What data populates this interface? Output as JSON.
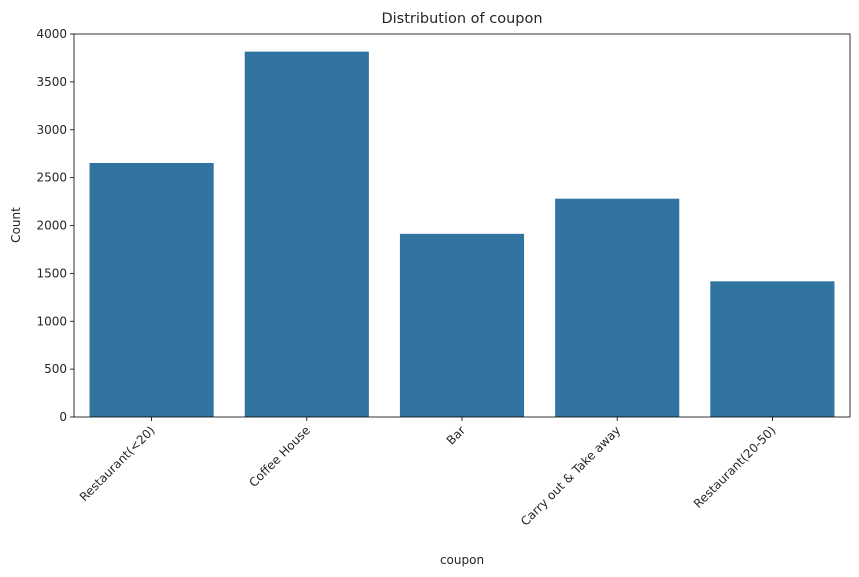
{
  "chart_data": {
    "type": "bar",
    "title": "Distribution of coupon",
    "xlabel": "coupon",
    "ylabel": "Count",
    "categories": [
      "Restaurant(<20)",
      "Coffee House",
      "Bar",
      "Carry out & Take away",
      "Restaurant(20-50)"
    ],
    "values": [
      2653,
      3816,
      1913,
      2280,
      1417
    ],
    "ylim": [
      0,
      4000
    ],
    "yticks": [
      0,
      500,
      1000,
      1500,
      2000,
      2500,
      3000,
      3500,
      4000
    ],
    "grid": false,
    "bar_color": "#3274a1",
    "xtick_rotation": 45
  }
}
